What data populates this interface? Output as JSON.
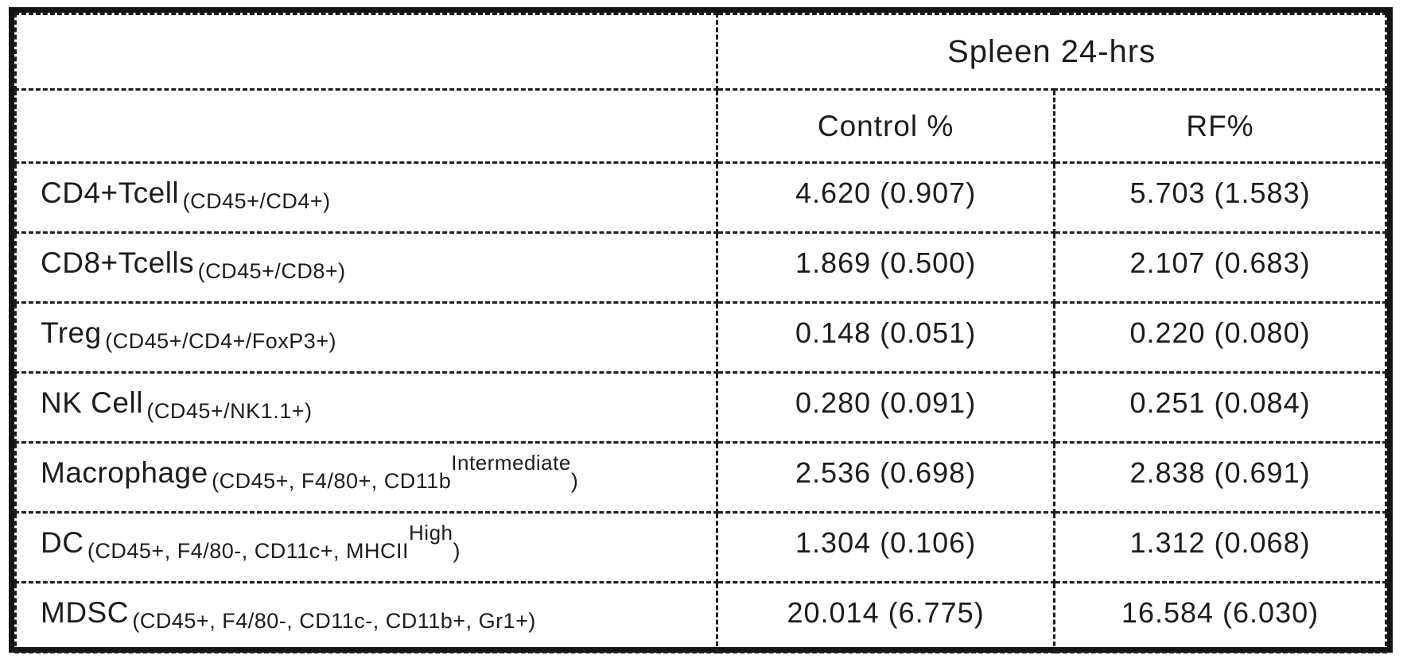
{
  "colors": {
    "ink": "#1c1c1c",
    "background": "#ffffff"
  },
  "table": {
    "title": "Spleen 24-hrs",
    "columns": {
      "label": "",
      "control": "Control %",
      "rf": "RF%"
    },
    "rows": [
      {
        "name": "CD4+Tcell",
        "marker": "(CD45+/CD4+)",
        "marker_sup": "",
        "marker_close": "",
        "control": "4.620 (0.907)",
        "rf": "5.703 (1.583)"
      },
      {
        "name": "CD8+Tcells",
        "marker": "(CD45+/CD8+)",
        "marker_sup": "",
        "marker_close": "",
        "control": "1.869 (0.500)",
        "rf": "2.107 (0.683)"
      },
      {
        "name": "Treg",
        "marker": "(CD45+/CD4+/FoxP3+)",
        "marker_sup": "",
        "marker_close": "",
        "control": "0.148 (0.051)",
        "rf": "0.220 (0.080)"
      },
      {
        "name": "NK Cell",
        "marker": "(CD45+/NK1.1+)",
        "marker_sup": "",
        "marker_close": "",
        "control": "0.280 (0.091)",
        "rf": "0.251 (0.084)"
      },
      {
        "name": "Macrophage",
        "marker": "(CD45+, F4/80+, CD11b",
        "marker_sup": "Intermediate",
        "marker_close": ")",
        "control": "2.536 (0.698)",
        "rf": "2.838 (0.691)"
      },
      {
        "name": "DC",
        "marker": "(CD45+, F4/80-, CD11c+, MHCII",
        "marker_sup": "High",
        "marker_close": ")",
        "control": "1.304 (0.106)",
        "rf": "1.312 (0.068)"
      },
      {
        "name": "MDSC",
        "marker": "(CD45+, F4/80-, CD11c-, CD11b+, Gr1+)",
        "marker_sup": "",
        "marker_close": "",
        "control": "20.014 (6.775)",
        "rf": "16.584 (6.030)"
      }
    ]
  },
  "chart_data": {
    "type": "table",
    "title": "Spleen 24-hrs",
    "columns": [
      "",
      "Control %",
      "RF%"
    ],
    "rows": [
      [
        "CD4+Tcell (CD45+/CD4+)",
        "4.620 (0.907)",
        "5.703 (1.583)"
      ],
      [
        "CD8+Tcells (CD45+/CD8+)",
        "1.869 (0.500)",
        "2.107 (0.683)"
      ],
      [
        "Treg (CD45+/CD4+/FoxP3+)",
        "0.148 (0.051)",
        "0.220 (0.080)"
      ],
      [
        "NK Cell (CD45+/NK1.1+)",
        "0.280 (0.091)",
        "0.251 (0.084)"
      ],
      [
        "Macrophage (CD45+, F4/80+, CD11b^Intermediate)",
        "2.536 (0.698)",
        "2.838 (0.691)"
      ],
      [
        "DC (CD45+, F4/80-, CD11c+, MHCII^High)",
        "1.304 (0.106)",
        "1.312 (0.068)"
      ],
      [
        "MDSC (CD45+, F4/80-, CD11c-, CD11b+, Gr1+)",
        "20.014 (6.775)",
        "16.584 (6.030)"
      ]
    ],
    "numeric": [
      {
        "population": "CD4+Tcell",
        "control_mean": 4.62,
        "control_sd": 0.907,
        "rf_mean": 5.703,
        "rf_sd": 1.583
      },
      {
        "population": "CD8+Tcells",
        "control_mean": 1.869,
        "control_sd": 0.5,
        "rf_mean": 2.107,
        "rf_sd": 0.683
      },
      {
        "population": "Treg",
        "control_mean": 0.148,
        "control_sd": 0.051,
        "rf_mean": 0.22,
        "rf_sd": 0.08
      },
      {
        "population": "NK Cell",
        "control_mean": 0.28,
        "control_sd": 0.091,
        "rf_mean": 0.251,
        "rf_sd": 0.084
      },
      {
        "population": "Macrophage",
        "control_mean": 2.536,
        "control_sd": 0.698,
        "rf_mean": 2.838,
        "rf_sd": 0.691
      },
      {
        "population": "DC",
        "control_mean": 1.304,
        "control_sd": 0.106,
        "rf_mean": 1.312,
        "rf_sd": 0.068
      },
      {
        "population": "MDSC",
        "control_mean": 20.014,
        "control_sd": 6.775,
        "rf_mean": 16.584,
        "rf_sd": 6.03
      }
    ]
  }
}
